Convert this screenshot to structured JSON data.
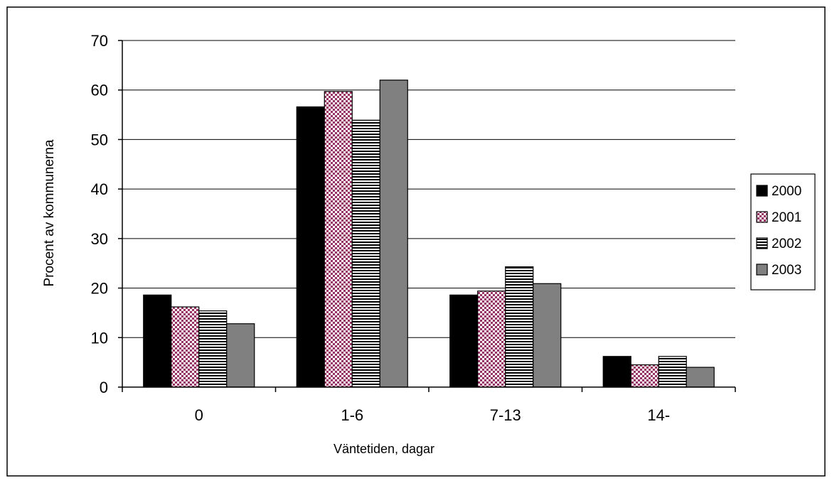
{
  "chart_data": {
    "type": "bar",
    "title": "",
    "xlabel": "Väntetiden, dagar",
    "ylabel": "Procent av kommunerna",
    "categories": [
      "0",
      "1-6",
      "7-13",
      "14-"
    ],
    "series": [
      {
        "name": "2000",
        "values": [
          18.6,
          56.6,
          18.6,
          6.2
        ]
      },
      {
        "name": "2001",
        "values": [
          16.2,
          59.7,
          19.4,
          4.5
        ]
      },
      {
        "name": "2002",
        "values": [
          15.4,
          53.9,
          24.3,
          6.2
        ]
      },
      {
        "name": "2003",
        "values": [
          12.8,
          62.0,
          20.9,
          4.0
        ]
      }
    ],
    "ylim": [
      0,
      70
    ],
    "yticks": [
      0,
      10,
      20,
      30,
      40,
      50,
      60,
      70
    ],
    "grid": true,
    "legend_position": "right",
    "series_styles": [
      {
        "fill": "#000000",
        "pattern": "solid"
      },
      {
        "fill": "#993366",
        "pattern": "checker"
      },
      {
        "fill": "#ffffff",
        "pattern": "horizontal-lines"
      },
      {
        "fill": "#808080",
        "pattern": "solid"
      }
    ]
  }
}
